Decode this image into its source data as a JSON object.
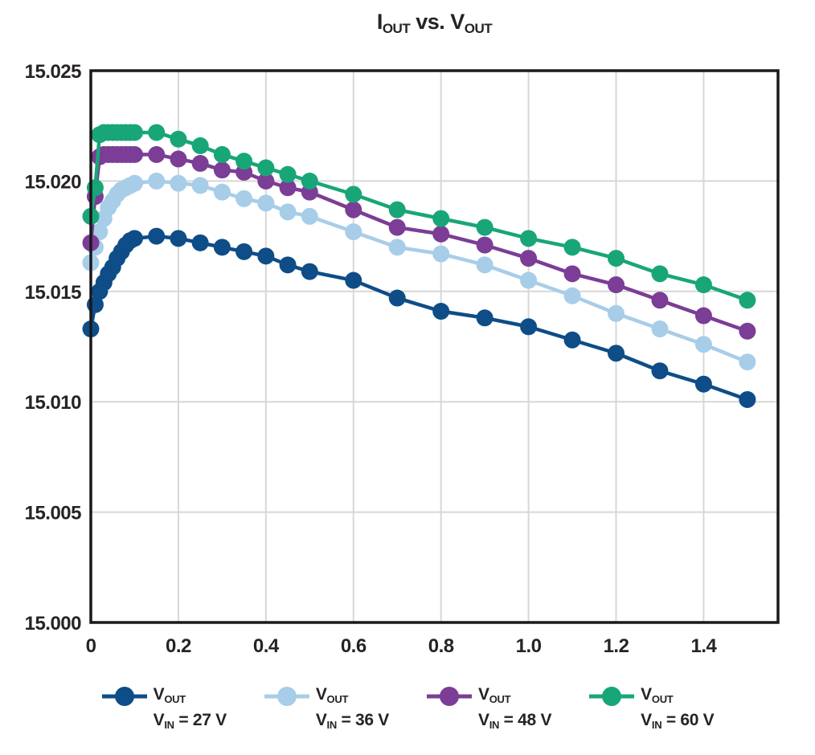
{
  "title": {
    "part1": "I",
    "part1_sub": "OUT",
    "mid": " vs. ",
    "part2": "V",
    "part2_sub": "OUT"
  },
  "colors": {
    "vin27": "#0e4d87",
    "vin36": "#a7cde9",
    "vin48": "#7b3d96",
    "vin60": "#18a678",
    "grid": "#d7d7d7",
    "axis_border": "#1b181a",
    "text": "#272324",
    "background": "#ffffff"
  },
  "chart_data": {
    "type": "line",
    "title": "IOUT vs. VOUT",
    "xlabel": "",
    "ylabel": "",
    "xlim": [
      0,
      1.57
    ],
    "ylim": [
      15.0,
      15.025
    ],
    "grid": true,
    "legend_position": "bottom",
    "x_ticks": [
      0,
      0.2,
      0.4,
      0.6,
      0.8,
      1.0,
      1.2,
      1.4
    ],
    "x_tick_labels": [
      "0",
      "0.2",
      "0.4",
      "0.6",
      "0.8",
      "1.0",
      "1.2",
      "1.4"
    ],
    "y_ticks": [
      15.0,
      15.005,
      15.01,
      15.015,
      15.02,
      15.025
    ],
    "y_tick_labels": [
      "15.000",
      "15.005",
      "15.010",
      "15.015",
      "15.020",
      "15.025"
    ],
    "x": [
      0,
      0.01,
      0.02,
      0.03,
      0.04,
      0.05,
      0.06,
      0.07,
      0.08,
      0.09,
      0.1,
      0.15,
      0.2,
      0.25,
      0.3,
      0.35,
      0.4,
      0.45,
      0.5,
      0.6,
      0.7,
      0.8,
      0.9,
      1.0,
      1.1,
      1.2,
      1.3,
      1.4,
      1.5
    ],
    "series": [
      {
        "id": "vin-27v",
        "name": "VOUT, VIN = 27 V",
        "color": "#0e4d87",
        "values": [
          15.0133,
          15.0144,
          15.015,
          15.0154,
          15.0158,
          15.0161,
          15.0165,
          15.0168,
          15.0171,
          15.0173,
          15.0174,
          15.0175,
          15.0174,
          15.0172,
          15.017,
          15.0168,
          15.0166,
          15.0162,
          15.0159,
          15.0155,
          15.0147,
          15.0141,
          15.0138,
          15.0134,
          15.0128,
          15.0122,
          15.0114,
          15.0108,
          15.0101
        ]
      },
      {
        "id": "vin-36v",
        "name": "VOUT, VIN = 36 V",
        "color": "#a7cde9",
        "values": [
          15.0163,
          15.017,
          15.0177,
          15.0183,
          15.0188,
          15.0191,
          15.0194,
          15.0196,
          15.0197,
          15.0198,
          15.0199,
          15.02,
          15.0199,
          15.0198,
          15.0195,
          15.0192,
          15.019,
          15.0186,
          15.0184,
          15.0177,
          15.017,
          15.0167,
          15.0162,
          15.0155,
          15.0148,
          15.014,
          15.0133,
          15.0126,
          15.0118
        ]
      },
      {
        "id": "vin-48v",
        "name": "VOUT, VIN = 48 V",
        "color": "#7b3d96",
        "values": [
          15.0172,
          15.0193,
          15.0211,
          15.0212,
          15.0212,
          15.0212,
          15.0212,
          15.0212,
          15.0212,
          15.0212,
          15.0212,
          15.0212,
          15.021,
          15.0208,
          15.0205,
          15.0204,
          15.02,
          15.0197,
          15.0195,
          15.0187,
          15.0179,
          15.0176,
          15.0171,
          15.0165,
          15.0158,
          15.0153,
          15.0146,
          15.0139,
          15.0132
        ]
      },
      {
        "id": "vin-60v",
        "name": "VOUT, VIN = 60 V",
        "color": "#18a678",
        "values": [
          15.0184,
          15.0197,
          15.0221,
          15.0222,
          15.0222,
          15.0222,
          15.0222,
          15.0222,
          15.0222,
          15.0222,
          15.0222,
          15.0222,
          15.0219,
          15.0216,
          15.0212,
          15.0209,
          15.0206,
          15.0203,
          15.02,
          15.0194,
          15.0187,
          15.0183,
          15.0179,
          15.0174,
          15.017,
          15.0165,
          15.0158,
          15.0153,
          15.0146
        ]
      }
    ]
  },
  "legend": {
    "items": [
      {
        "v": "V",
        "v_sub": "OUT",
        "vin": "V",
        "vin_sub": "IN",
        "value": " = 27 V",
        "color": "#0e4d87"
      },
      {
        "v": "V",
        "v_sub": "OUT",
        "vin": "V",
        "vin_sub": "IN",
        "value": " = 36 V",
        "color": "#a7cde9"
      },
      {
        "v": "V",
        "v_sub": "OUT",
        "vin": "V",
        "vin_sub": "IN",
        "value": " = 48 V",
        "color": "#7b3d96"
      },
      {
        "v": "V",
        "v_sub": "OUT",
        "vin": "V",
        "vin_sub": "IN",
        "value": " = 60 V",
        "color": "#18a678"
      }
    ]
  }
}
